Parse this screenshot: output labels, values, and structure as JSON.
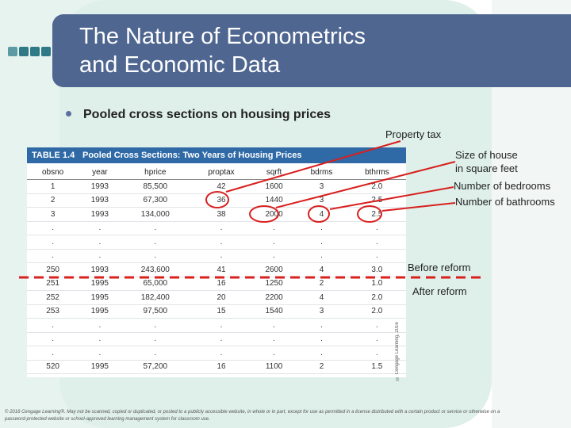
{
  "title": {
    "line1": "The Nature of Econometrics",
    "line2": "and Economic Data"
  },
  "bullet": "Pooled cross sections on housing prices",
  "table": {
    "number": "TABLE 1.4",
    "caption": "Pooled Cross Sections: Two Years of Housing Prices",
    "columns": [
      "obsno",
      "year",
      "hprice",
      "proptax",
      "sqrft",
      "bdrms",
      "bthrms"
    ],
    "rows": [
      [
        "1",
        "1993",
        "85,500",
        "42",
        "1600",
        "3",
        "2.0"
      ],
      [
        "2",
        "1993",
        "67,300",
        "36",
        "1440",
        "3",
        "2.5"
      ],
      [
        "3",
        "1993",
        "134,000",
        "38",
        "2000",
        "4",
        "2.5"
      ],
      [
        ".",
        ".",
        ".",
        ".",
        ".",
        ".",
        "."
      ],
      [
        ".",
        ".",
        ".",
        ".",
        ".",
        ".",
        "."
      ],
      [
        ".",
        ".",
        ".",
        ".",
        ".",
        ".",
        "."
      ],
      [
        "250",
        "1993",
        "243,600",
        "41",
        "2600",
        "4",
        "3.0"
      ],
      [
        "251",
        "1995",
        "65,000",
        "16",
        "1250",
        "2",
        "1.0"
      ],
      [
        "252",
        "1995",
        "182,400",
        "20",
        "2200",
        "4",
        "2.0"
      ],
      [
        "253",
        "1995",
        "97,500",
        "15",
        "1540",
        "3",
        "2.0"
      ],
      [
        ".",
        ".",
        ".",
        ".",
        ".",
        ".",
        "."
      ],
      [
        ".",
        ".",
        ".",
        ".",
        ".",
        ".",
        "."
      ],
      [
        ".",
        ".",
        ".",
        ".",
        ".",
        ".",
        "."
      ],
      [
        "520",
        "1995",
        "57,200",
        "16",
        "1100",
        "2",
        "1.5"
      ]
    ],
    "side_copyright": "© Cengage Learning, 2016"
  },
  "annotations": {
    "property_tax": "Property tax",
    "size_line1": "Size of house",
    "size_line2": "in square feet",
    "bedrooms": "Number of bedrooms",
    "bathrooms": "Number of bathrooms",
    "before_reform": "Before reform",
    "after_reform": "After reform"
  },
  "footer": "© 2016 Cengage Learning®. May not be scanned, copied or duplicated, or posted to a publicly accessible website, in whole or in part, except for use as permitted in a license distributed with a certain product or service or otherwise on a password-protected website or school-approved learning management system for classroom use.",
  "colors": {
    "title_bar": "#4f6690",
    "table_header": "#2f6aa6",
    "annotation_red": "#d8201e"
  }
}
